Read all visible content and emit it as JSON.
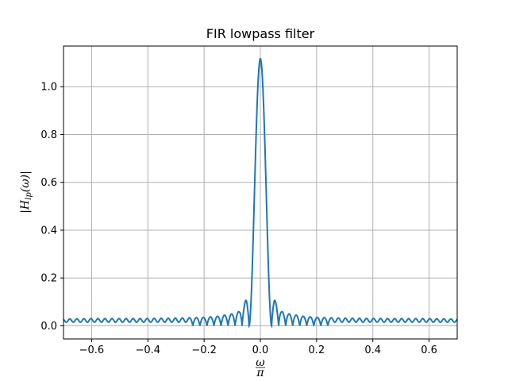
{
  "chart_data": {
    "type": "line",
    "title": "FIR lowpass filter",
    "xlabel": "ω/π",
    "ylabel": "|H_lp(ω)|",
    "xlim": [
      -0.7,
      0.7
    ],
    "ylim": [
      -0.055,
      1.17
    ],
    "xticks": [
      -0.6,
      -0.4,
      -0.2,
      0.0,
      0.2,
      0.4,
      0.6
    ],
    "xtick_labels": [
      "−0.6",
      "−0.4",
      "−0.2",
      "0.0",
      "0.2",
      "0.4",
      "0.6"
    ],
    "yticks": [
      0.0,
      0.2,
      0.4,
      0.6,
      0.8,
      1.0
    ],
    "ytick_labels": [
      "0.0",
      "0.2",
      "0.4",
      "0.6",
      "0.8",
      "1.0"
    ],
    "grid": true,
    "series": [
      {
        "color": "#1f77b4",
        "peak": 1.117,
        "first_null": 0.04,
        "side_lobe_peaks": [
          [
            0.05,
            0.11
          ],
          [
            0.075,
            0.06
          ],
          [
            0.1,
            0.05
          ],
          [
            0.125,
            0.045
          ],
          [
            0.15,
            0.04
          ],
          [
            0.2,
            0.035
          ],
          [
            0.3,
            0.032
          ],
          [
            0.45,
            0.03
          ],
          [
            0.6,
            0.03
          ],
          [
            0.7,
            0.028
          ]
        ],
        "floor": 0.015,
        "ripple_period": 0.025
      }
    ]
  }
}
